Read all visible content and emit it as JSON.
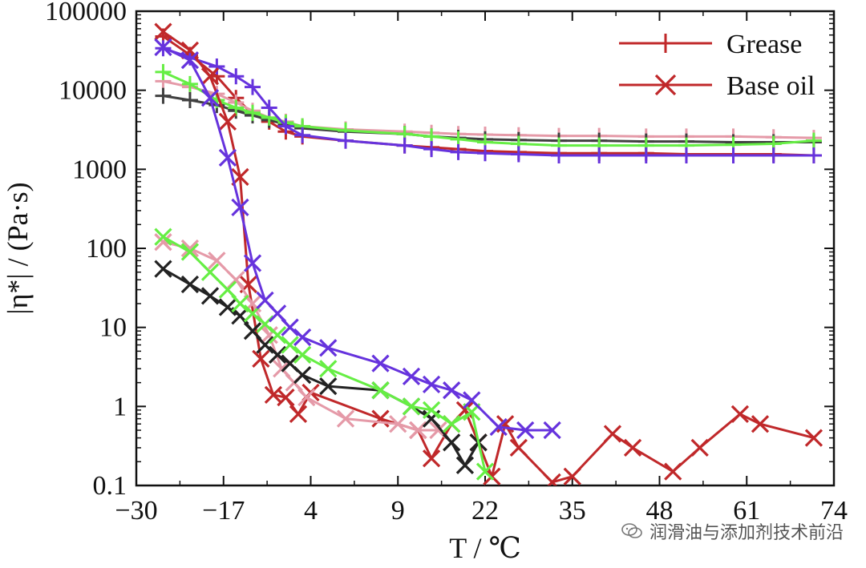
{
  "chart_data": {
    "type": "line",
    "xlabel": "T / ℃",
    "ylabel": "|η*| / (Pa·s)",
    "yscale": "log",
    "xlim": [
      -30,
      74
    ],
    "ylim": [
      0.1,
      100000
    ],
    "xticks": [
      -30,
      -17,
      4,
      9,
      22,
      35,
      48,
      61,
      74
    ],
    "xtick_labels": [
      "−30",
      "−17",
      "4",
      "9",
      "22",
      "35",
      "48",
      "61",
      "74"
    ],
    "yticks": [
      0.1,
      1,
      10,
      100,
      1000,
      10000,
      100000
    ],
    "ytick_labels": [
      "0.1",
      "1",
      "10",
      "100",
      "1000",
      "10000",
      "100000"
    ],
    "legend": [
      {
        "label": "Grease",
        "marker": "plus",
        "color": "#c0282a"
      },
      {
        "label": "Base oil",
        "marker": "x",
        "color": "#c0282a"
      }
    ],
    "legend_position": "top-right",
    "series": [
      {
        "marker": "plus",
        "color": "#c0282a",
        "x": [
          -26,
          -22,
          -18,
          -14,
          -10,
          -6,
          -2,
          2,
          6,
          10,
          14,
          18,
          22,
          27,
          33,
          39,
          46,
          52,
          59,
          65,
          71
        ],
        "y": [
          48000,
          28000,
          15000,
          8000,
          5000,
          4000,
          3000,
          2600,
          2300,
          2000,
          1900,
          1800,
          1700,
          1650,
          1600,
          1600,
          1600,
          1550,
          1550,
          1550,
          1500
        ]
      },
      {
        "marker": "plus",
        "color": "#e59aa8",
        "x": [
          -26,
          -22,
          -18,
          -14,
          -10,
          -6,
          -2,
          2,
          6,
          10,
          14,
          18,
          22,
          27,
          33,
          39,
          46,
          52,
          59,
          65,
          71
        ],
        "y": [
          13000,
          11000,
          9000,
          7000,
          5500,
          4500,
          4000,
          3500,
          3200,
          3000,
          2900,
          2800,
          2750,
          2700,
          2650,
          2650,
          2600,
          2600,
          2600,
          2550,
          2500
        ]
      },
      {
        "marker": "plus",
        "color": "#404040",
        "x": [
          -26,
          -22,
          -18,
          -14,
          -10,
          -6,
          -2,
          2,
          6,
          10,
          14,
          18,
          22,
          27,
          33,
          39,
          46,
          52,
          59,
          65,
          71
        ],
        "y": [
          8500,
          7500,
          6500,
          5500,
          4800,
          4200,
          3700,
          3300,
          3000,
          2800,
          2600,
          2500,
          2400,
          2350,
          2300,
          2300,
          2250,
          2250,
          2200,
          2200,
          2200
        ]
      },
      {
        "marker": "plus",
        "color": "#66ee44",
        "x": [
          -26,
          -22,
          -18,
          -14,
          -10,
          -6,
          -2,
          2,
          6,
          10,
          14,
          18,
          22,
          27,
          33,
          39,
          46,
          52,
          59,
          65,
          71
        ],
        "y": [
          17000,
          12000,
          7500,
          6000,
          5200,
          4500,
          3900,
          3500,
          3100,
          2800,
          2600,
          2400,
          2200,
          2100,
          2000,
          2000,
          2000,
          2000,
          2050,
          2100,
          2300
        ]
      },
      {
        "marker": "plus",
        "color": "#6633dd",
        "x": [
          -26,
          -22,
          -18,
          -14,
          -10,
          -6,
          -2,
          2,
          6,
          10,
          14,
          18,
          22,
          27,
          33,
          39,
          46,
          52,
          59,
          65,
          71
        ],
        "y": [
          34000,
          26000,
          20000,
          15000,
          11000,
          6000,
          3500,
          2700,
          2300,
          2000,
          1800,
          1650,
          1600,
          1550,
          1500,
          1500,
          1500,
          1500,
          1500,
          1500,
          1500
        ]
      },
      {
        "marker": "x",
        "color": "#c0282a",
        "x": [
          -26,
          -22,
          -19,
          -16,
          -13,
          -11,
          -8,
          -5,
          -2,
          1,
          4,
          8,
          12,
          14,
          17,
          19,
          21,
          23,
          25,
          27,
          32,
          35,
          41,
          44,
          50,
          54,
          60,
          63,
          71
        ],
        "y": [
          55000,
          32000,
          15000,
          4000,
          800,
          35,
          4,
          1.4,
          1.3,
          0.8,
          1.5,
          0.7,
          0.5,
          0.22,
          0.6,
          0.9,
          0.35,
          0.13,
          0.6,
          0.3,
          0.11,
          0.13,
          0.45,
          0.3,
          0.15,
          0.3,
          0.8,
          0.6,
          0.4
        ]
      },
      {
        "marker": "x",
        "color": "#e59aa8",
        "x": [
          -26,
          -22,
          -18,
          -14,
          -10,
          -6,
          -3,
          0,
          3,
          6,
          9,
          12,
          15
        ],
        "y": [
          120,
          100,
          70,
          40,
          20,
          8,
          3,
          2,
          1.3,
          0.7,
          0.6,
          0.5,
          0.5
        ]
      },
      {
        "marker": "x",
        "color": "#222222",
        "x": [
          -26,
          -22,
          -19,
          -16,
          -13,
          -10,
          -7,
          -4,
          -1,
          2,
          5,
          8,
          11,
          14,
          17,
          19,
          21
        ],
        "y": [
          55,
          35,
          25,
          18,
          14,
          9,
          6,
          4.5,
          3.5,
          2.5,
          1.8,
          1.6,
          1,
          0.7,
          0.35,
          0.18,
          0.35
        ]
      },
      {
        "marker": "x",
        "color": "#66ee44",
        "x": [
          -26,
          -22,
          -19,
          -16,
          -13,
          -10,
          -7,
          -4,
          -1,
          2,
          5,
          8,
          11,
          14,
          17,
          20,
          22
        ],
        "y": [
          140,
          90,
          50,
          30,
          20,
          15,
          11,
          8,
          6,
          4.5,
          3,
          1.6,
          1,
          0.9,
          0.6,
          0.85,
          0.15
        ]
      },
      {
        "marker": "x",
        "color": "#6633dd",
        "x": [
          -26,
          -22,
          -19,
          -16,
          -13,
          -10,
          -7,
          -4,
          -1,
          2,
          5,
          8,
          11,
          14,
          17,
          20,
          24,
          28,
          32
        ],
        "y": [
          35000,
          24000,
          8000,
          1400,
          330,
          65,
          22,
          15,
          10,
          7.5,
          5.5,
          3.5,
          2.4,
          1.9,
          1.6,
          1.2,
          0.55,
          0.5,
          0.5
        ]
      }
    ]
  },
  "watermark": {
    "text": "润滑油与添加剂技术前沿",
    "icon": "wechat-icon"
  }
}
